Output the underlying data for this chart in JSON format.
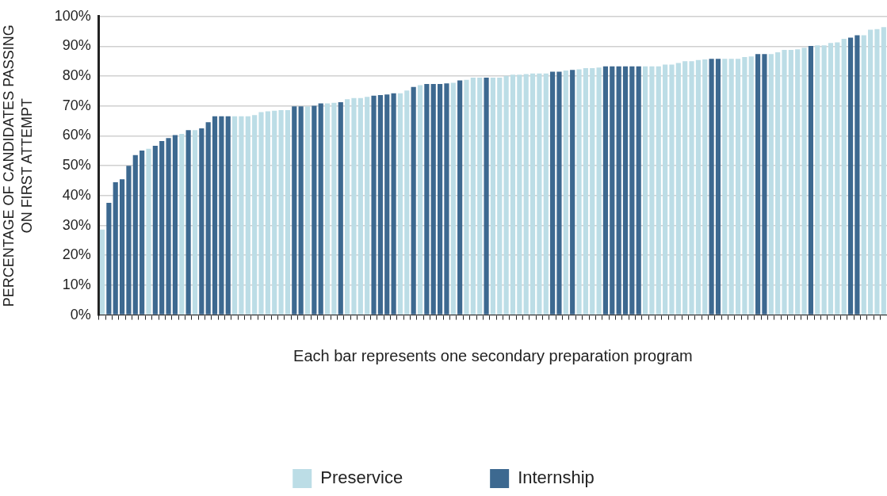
{
  "chart_data": {
    "type": "bar",
    "xlabel": "Each bar represents one secondary preparation program",
    "ylabel": "PERCENTAGE OF CANDIDATES PASSING\nON FIRST ATTEMPT",
    "categories": [
      null,
      null,
      null,
      null,
      null,
      null,
      null,
      null,
      null,
      null,
      null,
      null,
      null,
      null,
      null,
      null,
      null,
      null,
      null,
      null,
      null,
      null,
      null,
      null,
      null,
      null,
      null,
      null,
      null,
      null,
      null,
      null,
      null,
      null,
      null,
      null,
      null,
      null,
      null,
      null,
      null,
      null,
      null,
      null,
      null,
      null,
      null,
      null,
      null,
      null,
      null,
      null,
      null,
      null,
      null,
      null,
      null,
      null,
      null,
      null,
      null,
      null,
      null,
      null,
      null,
      null,
      null,
      null,
      null,
      null,
      null,
      null,
      null,
      null,
      null,
      null,
      null,
      null,
      null,
      null,
      null,
      null,
      null,
      null,
      null,
      null,
      null,
      null,
      null,
      null,
      null,
      null,
      null,
      null,
      null,
      null,
      null,
      null,
      null,
      null,
      null,
      null,
      null,
      null,
      null,
      null,
      null,
      null,
      null,
      null,
      null,
      null,
      null,
      null,
      null,
      null,
      null,
      null,
      null
    ],
    "series": [
      {
        "name": "Preservice",
        "color": "#bcdde6",
        "values": [
          28.6,
          null,
          null,
          null,
          null,
          null,
          null,
          55.7,
          null,
          null,
          null,
          null,
          60.7,
          null,
          61.9,
          null,
          null,
          null,
          null,
          null,
          66.6,
          66.6,
          66.6,
          67,
          68,
          68.2,
          68.4,
          68.6,
          68.6,
          null,
          null,
          69.9,
          null,
          null,
          70.9,
          71.1,
          null,
          72.3,
          72.7,
          72.7,
          73.1,
          null,
          null,
          null,
          null,
          74.3,
          75.2,
          null,
          77,
          null,
          null,
          null,
          null,
          77.8,
          null,
          78.8,
          79.5,
          79.5,
          null,
          79.5,
          79.5,
          80.1,
          80.5,
          80.5,
          80.7,
          80.9,
          80.9,
          80.9,
          null,
          null,
          81.9,
          null,
          82.3,
          82.7,
          82.7,
          82.9,
          null,
          null,
          null,
          null,
          null,
          null,
          83.3,
          83.3,
          83.3,
          83.9,
          83.9,
          84.4,
          85,
          85,
          85.4,
          85.6,
          null,
          null,
          85.8,
          85.8,
          85.8,
          86.4,
          86.6,
          null,
          null,
          87.4,
          88,
          88.8,
          88.8,
          89,
          89.5,
          null,
          90.3,
          90.3,
          91.1,
          91.3,
          92.5,
          null,
          null,
          93.7,
          95.6,
          95.8,
          96.4
        ]
      },
      {
        "name": "Internship",
        "color": "#3d6990",
        "values": [
          null,
          37.6,
          44.5,
          45.5,
          50,
          53.6,
          55.1,
          null,
          56.7,
          58.3,
          59.3,
          60.3,
          null,
          61.9,
          null,
          62.5,
          64.6,
          66.6,
          66.6,
          66.6,
          null,
          null,
          null,
          null,
          null,
          null,
          null,
          null,
          null,
          69.9,
          69.9,
          null,
          70.1,
          70.9,
          null,
          null,
          71.3,
          null,
          null,
          null,
          null,
          73.5,
          73.7,
          73.9,
          74.3,
          null,
          null,
          76.4,
          null,
          77.4,
          77.4,
          77.4,
          77.6,
          null,
          78.6,
          null,
          null,
          null,
          79.5,
          null,
          null,
          null,
          null,
          null,
          null,
          null,
          null,
          null,
          81.5,
          81.5,
          null,
          82.1,
          null,
          null,
          null,
          null,
          83.3,
          83.3,
          83.3,
          83.3,
          83.3,
          83.3,
          null,
          null,
          null,
          null,
          null,
          null,
          null,
          null,
          null,
          null,
          85.8,
          85.8,
          null,
          null,
          null,
          null,
          null,
          87.4,
          87.4,
          null,
          null,
          null,
          null,
          null,
          null,
          90.1,
          null,
          null,
          null,
          null,
          null,
          92.9,
          93.7,
          null,
          null,
          null,
          null
        ]
      }
    ],
    "ylim": [
      0,
      100
    ],
    "yticks": [
      {
        "value": 0,
        "label": "0%"
      },
      {
        "value": 10,
        "label": "10%"
      },
      {
        "value": 20,
        "label": "20%"
      },
      {
        "value": 30,
        "label": "30%"
      },
      {
        "value": 40,
        "label": "40%"
      },
      {
        "value": 50,
        "label": "50%"
      },
      {
        "value": 60,
        "label": "60%"
      },
      {
        "value": 70,
        "label": "70%"
      },
      {
        "value": 80,
        "label": "80%"
      },
      {
        "value": 90,
        "label": "90%"
      },
      {
        "value": 100,
        "label": "100%"
      }
    ],
    "grid": "y",
    "legend": "bottom"
  }
}
